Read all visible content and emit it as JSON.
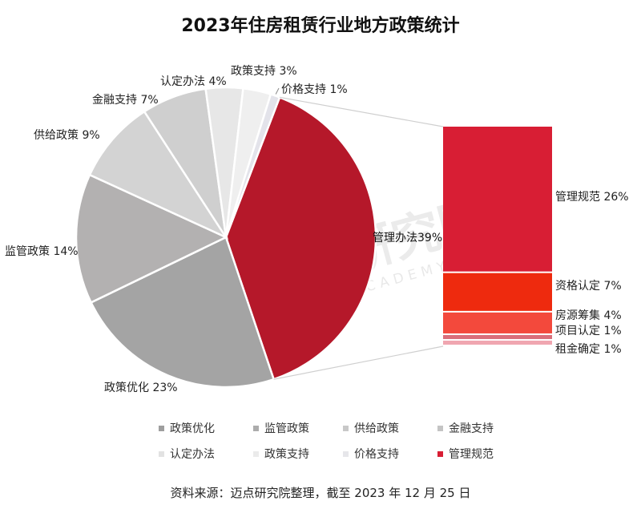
{
  "title": "2023年住房租赁行业地方政策统计",
  "source": "资料来源：迈点研究院整理，截至 2023 年 12 月 25 日",
  "watermark": {
    "cn": "迈点研究院",
    "en": "MEADIN ACADEMY"
  },
  "chart_data": [
    {
      "type": "pie",
      "slices": [
        {
          "name": "管理办法",
          "value": 39,
          "label": "管理办法39%",
          "color": "#b5182a"
        },
        {
          "name": "政策优化",
          "value": 23,
          "label": "政策优化 23%",
          "color": "#a4a4a4"
        },
        {
          "name": "监管政策",
          "value": 14,
          "label": "监管政策 14%",
          "color": "#b3b1b1"
        },
        {
          "name": "供给政策",
          "value": 9,
          "label": "供给政策 9%",
          "color": "#d3d3d3"
        },
        {
          "name": "金融支持",
          "value": 7,
          "label": "金融支持 7%",
          "color": "#cfcfcf"
        },
        {
          "name": "认定办法",
          "value": 4,
          "label": "认定办法 4%",
          "color": "#e7e7e7"
        },
        {
          "name": "政策支持",
          "value": 3,
          "label": "政策支持 3%",
          "color": "#efefef"
        },
        {
          "name": "价格支持",
          "value": 1,
          "label": "价格支持 1%",
          "color": "#e3e3ea"
        }
      ]
    },
    {
      "type": "bar",
      "stacked": true,
      "expands": "管理办法",
      "segments": [
        {
          "name": "管理规范",
          "value": 26,
          "label": "管理规范 26%",
          "color": "#d81e34"
        },
        {
          "name": "资格认定",
          "value": 7,
          "label": "资格认定 7%",
          "color": "#ee2a0e"
        },
        {
          "name": "房源筹集",
          "value": 4,
          "label": "房源筹集 4%",
          "color": "#f3493c"
        },
        {
          "name": "项目认定",
          "value": 1,
          "label": "项目认定 1%",
          "color": "#d96e7a"
        },
        {
          "name": "租金确定",
          "value": 1,
          "label": "租金确定 1%",
          "color": "#f0a6b0"
        }
      ]
    }
  ],
  "legend": [
    {
      "label": "政策优化",
      "color": "#9e9e9e"
    },
    {
      "label": "监管政策",
      "color": "#acacac"
    },
    {
      "label": "供给政策",
      "color": "#c8c8c8"
    },
    {
      "label": "金融支持",
      "color": "#c4c4c4"
    },
    {
      "label": "认定办法",
      "color": "#e2e2e2"
    },
    {
      "label": "政策支持",
      "color": "#ebebeb"
    },
    {
      "label": "价格支持",
      "color": "#e6e6ea"
    },
    {
      "label": "管理规范",
      "color": "#d81e34"
    }
  ]
}
